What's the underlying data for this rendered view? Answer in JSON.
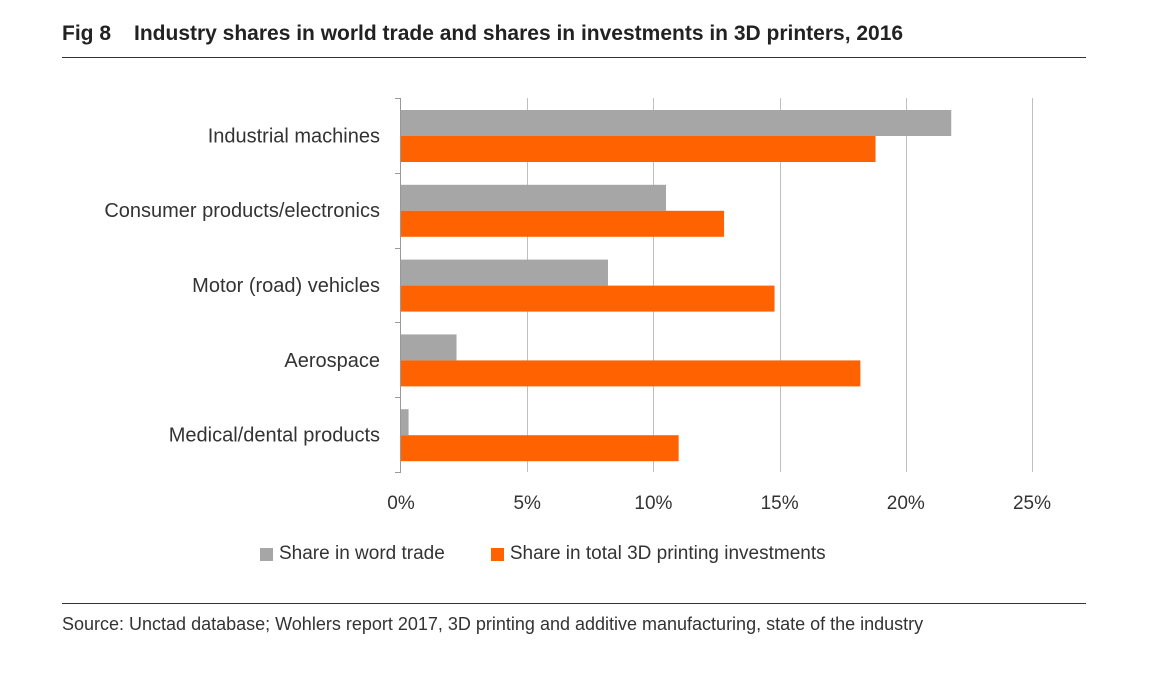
{
  "figure": {
    "number": "Fig 8",
    "title": "Industry shares in world trade and shares in investments in 3D printers, 2016"
  },
  "chart_data": {
    "type": "bar",
    "orientation": "horizontal",
    "categories": [
      "Industrial machines",
      "Consumer products/electronics",
      "Motor (road) vehicles",
      "Aerospace",
      "Medical/dental products"
    ],
    "series": [
      {
        "name": "Share in word trade",
        "color": "#a6a6a6",
        "values": [
          21.8,
          10.5,
          8.2,
          2.2,
          0.3
        ]
      },
      {
        "name": "Share in total 3D printing investments",
        "color": "#ff6200",
        "values": [
          18.8,
          12.8,
          14.8,
          18.2,
          11.0
        ]
      }
    ],
    "xlim": [
      0,
      25
    ],
    "ticks": [
      0,
      5,
      10,
      15,
      20,
      25
    ],
    "tick_labels": [
      "0%",
      "5%",
      "10%",
      "15%",
      "20%",
      "25%"
    ],
    "grid": true,
    "legend_position": "bottom",
    "xlabel": "",
    "ylabel": ""
  },
  "source": "Source: Unctad database; Wohlers report 2017, 3D printing and additive manufacturing, state of the industry"
}
